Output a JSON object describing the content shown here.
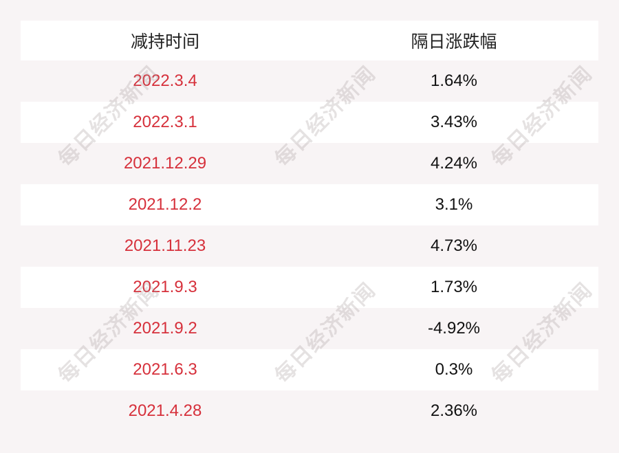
{
  "header": {
    "col1": "减持时间",
    "col2": "隔日涨跌幅"
  },
  "rows": [
    {
      "date": "2022.3.4",
      "change": "1.64%"
    },
    {
      "date": "2022.3.1",
      "change": "3.43%"
    },
    {
      "date": "2021.12.29",
      "change": "4.24%"
    },
    {
      "date": "2021.12.2",
      "change": "3.1%"
    },
    {
      "date": "2021.11.23",
      "change": "4.73%"
    },
    {
      "date": "2021.9.3",
      "change": "1.73%"
    },
    {
      "date": "2021.9.2",
      "change": "-4.92%"
    },
    {
      "date": "2021.6.3",
      "change": "0.3%"
    },
    {
      "date": "2021.4.28",
      "change": "2.36%"
    }
  ],
  "watermark": "每日经济新闻",
  "colors": {
    "date": "#d6303b",
    "background": "#f8f4f5"
  }
}
